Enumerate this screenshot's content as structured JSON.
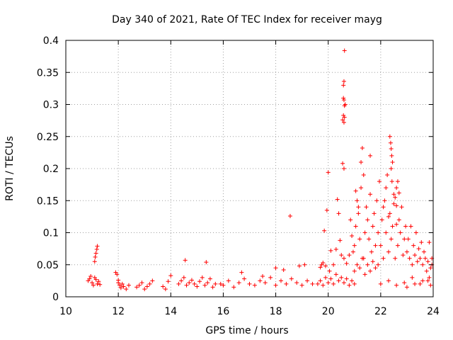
{
  "chart_data": {
    "type": "scatter",
    "title": "Day 340 of 2021, Rate Of TEC Index for receiver mayg",
    "xlabel": "GPS time / hours",
    "ylabel": "ROTI / TECUs",
    "xlim": [
      10,
      24
    ],
    "ylim": [
      0,
      0.4
    ],
    "grid": true,
    "marker": "plus",
    "color": "#ff0000",
    "x_ticks": [
      {
        "value": 10,
        "label": "10"
      },
      {
        "value": 12,
        "label": "12"
      },
      {
        "value": 14,
        "label": "14"
      },
      {
        "value": 16,
        "label": "16"
      },
      {
        "value": 18,
        "label": "18"
      },
      {
        "value": 20,
        "label": "20"
      },
      {
        "value": 22,
        "label": "22"
      },
      {
        "value": 24,
        "label": "24"
      }
    ],
    "y_ticks": [
      {
        "value": 0,
        "label": "0"
      },
      {
        "value": 0.05,
        "label": "0.05"
      },
      {
        "value": 0.1,
        "label": "0.1"
      },
      {
        "value": 0.15,
        "label": "0.15"
      },
      {
        "value": 0.2,
        "label": "0.2"
      },
      {
        "value": 0.25,
        "label": "0.25"
      },
      {
        "value": 0.3,
        "label": "0.3"
      },
      {
        "value": 0.35,
        "label": "0.35"
      },
      {
        "value": 0.4,
        "label": "0.4"
      }
    ],
    "series": [
      {
        "name": "ROTI",
        "x": [
          10.85,
          10.9,
          10.95,
          11.0,
          11.05,
          11.1,
          11.15,
          11.2,
          11.25,
          11.3,
          11.1,
          11.12,
          11.15,
          11.18,
          11.2,
          11.9,
          11.95,
          12.0,
          12.05,
          12.1,
          12.15,
          12.2,
          12.3,
          12.4,
          12.0,
          12.7,
          12.8,
          12.9,
          13.0,
          13.1,
          13.2,
          13.3,
          13.7,
          13.8,
          13.9,
          14.0,
          14.3,
          14.4,
          14.5,
          14.6,
          14.7,
          14.8,
          14.9,
          15.0,
          15.1,
          15.2,
          15.3,
          15.4,
          15.5,
          15.6,
          15.7,
          14.55,
          15.35,
          15.9,
          16.0,
          16.2,
          16.4,
          16.6,
          16.8,
          17.0,
          17.2,
          17.4,
          17.6,
          17.8,
          18.0,
          18.2,
          18.4,
          18.6,
          18.8,
          19.0,
          19.2,
          19.4,
          16.7,
          17.5,
          18.0,
          18.3,
          18.55,
          18.9,
          19.1,
          19.6,
          19.7,
          19.8,
          19.9,
          20.0,
          20.1,
          20.2,
          20.3,
          20.4,
          20.5,
          20.6,
          20.7,
          20.8,
          20.9,
          21.0,
          19.7,
          19.75,
          19.8,
          19.85,
          19.9,
          19.95,
          20.0,
          20.05,
          20.1,
          20.2,
          20.3,
          20.35,
          20.4,
          20.45,
          20.5,
          20.55,
          20.6,
          20.62,
          20.65,
          20.55,
          20.58,
          20.6,
          20.58,
          20.6,
          20.62,
          20.6,
          20.58,
          20.62,
          20.6,
          20.7,
          20.8,
          20.85,
          20.9,
          20.95,
          21.0,
          21.05,
          21.1,
          21.15,
          21.2,
          21.25,
          21.3,
          21.35,
          21.4,
          21.45,
          21.5,
          21.55,
          21.6,
          21.65,
          21.7,
          21.75,
          21.8,
          21.85,
          21.9,
          21.95,
          21.0,
          21.1,
          21.2,
          21.3,
          21.4,
          21.5,
          21.6,
          21.7,
          21.8,
          21.9,
          21.25,
          21.35,
          21.05,
          21.15,
          21.6,
          22.0,
          22.05,
          22.1,
          22.15,
          22.2,
          22.25,
          22.3,
          22.35,
          22.4,
          22.45,
          22.5,
          22.55,
          22.6,
          22.65,
          22.7,
          22.75,
          22.8,
          22.85,
          22.9,
          22.95,
          22.35,
          22.38,
          22.4,
          22.42,
          22.45,
          22.4,
          22.43,
          22.5,
          22.55,
          22.6,
          22.2,
          22.1,
          22.3,
          22.6,
          22.65,
          22.7,
          23.0,
          23.05,
          23.1,
          23.15,
          23.2,
          23.25,
          23.3,
          23.35,
          23.4,
          23.45,
          23.5,
          23.55,
          23.6,
          23.65,
          23.7,
          23.75,
          23.8,
          23.85,
          23.9,
          23.95,
          22.0,
          22.3,
          22.6,
          22.9,
          23.2,
          23.5,
          23.8,
          23.0,
          23.3,
          23.6,
          23.9,
          23.85,
          23.95
        ],
        "y": [
          0.025,
          0.028,
          0.032,
          0.022,
          0.018,
          0.03,
          0.027,
          0.02,
          0.024,
          0.019,
          0.055,
          0.062,
          0.068,
          0.074,
          0.079,
          0.038,
          0.035,
          0.022,
          0.018,
          0.014,
          0.02,
          0.016,
          0.012,
          0.018,
          0.026,
          0.015,
          0.018,
          0.022,
          0.012,
          0.016,
          0.02,
          0.025,
          0.016,
          0.012,
          0.024,
          0.033,
          0.02,
          0.025,
          0.03,
          0.018,
          0.022,
          0.026,
          0.02,
          0.016,
          0.024,
          0.03,
          0.018,
          0.022,
          0.028,
          0.015,
          0.02,
          0.057,
          0.054,
          0.02,
          0.018,
          0.025,
          0.015,
          0.022,
          0.028,
          0.02,
          0.018,
          0.025,
          0.022,
          0.03,
          0.018,
          0.025,
          0.02,
          0.028,
          0.022,
          0.018,
          0.025,
          0.02,
          0.038,
          0.032,
          0.045,
          0.042,
          0.126,
          0.048,
          0.05,
          0.02,
          0.025,
          0.018,
          0.03,
          0.022,
          0.028,
          0.02,
          0.035,
          0.025,
          0.03,
          0.022,
          0.028,
          0.018,
          0.025,
          0.02,
          0.046,
          0.05,
          0.053,
          0.103,
          0.048,
          0.135,
          0.194,
          0.04,
          0.072,
          0.05,
          0.074,
          0.152,
          0.13,
          0.088,
          0.065,
          0.208,
          0.272,
          0.28,
          0.3,
          0.276,
          0.283,
          0.307,
          0.33,
          0.336,
          0.384,
          0.2,
          0.31,
          0.298,
          0.06,
          0.052,
          0.065,
          0.12,
          0.095,
          0.07,
          0.08,
          0.11,
          0.15,
          0.13,
          0.09,
          0.17,
          0.232,
          0.06,
          0.1,
          0.14,
          0.12,
          0.09,
          0.16,
          0.07,
          0.11,
          0.13,
          0.08,
          0.15,
          0.1,
          0.18,
          0.04,
          0.05,
          0.045,
          0.06,
          0.035,
          0.05,
          0.04,
          0.055,
          0.045,
          0.05,
          0.21,
          0.19,
          0.165,
          0.14,
          0.22,
          0.08,
          0.12,
          0.06,
          0.15,
          0.1,
          0.19,
          0.07,
          0.13,
          0.09,
          0.11,
          0.145,
          0.06,
          0.17,
          0.08,
          0.12,
          0.1,
          0.14,
          0.065,
          0.09,
          0.11,
          0.25,
          0.24,
          0.231,
          0.22,
          0.21,
          0.2,
          0.18,
          0.16,
          0.155,
          0.142,
          0.17,
          0.14,
          0.125,
          0.113,
          0.18,
          0.162,
          0.07,
          0.09,
          0.06,
          0.11,
          0.05,
          0.08,
          0.065,
          0.1,
          0.055,
          0.075,
          0.06,
          0.085,
          0.05,
          0.07,
          0.06,
          0.04,
          0.055,
          0.085,
          0.045,
          0.05,
          0.02,
          0.025,
          0.018,
          0.022,
          0.03,
          0.02,
          0.025,
          0.015,
          0.02,
          0.025,
          0.018,
          0.03,
          0.06
        ]
      }
    ]
  }
}
